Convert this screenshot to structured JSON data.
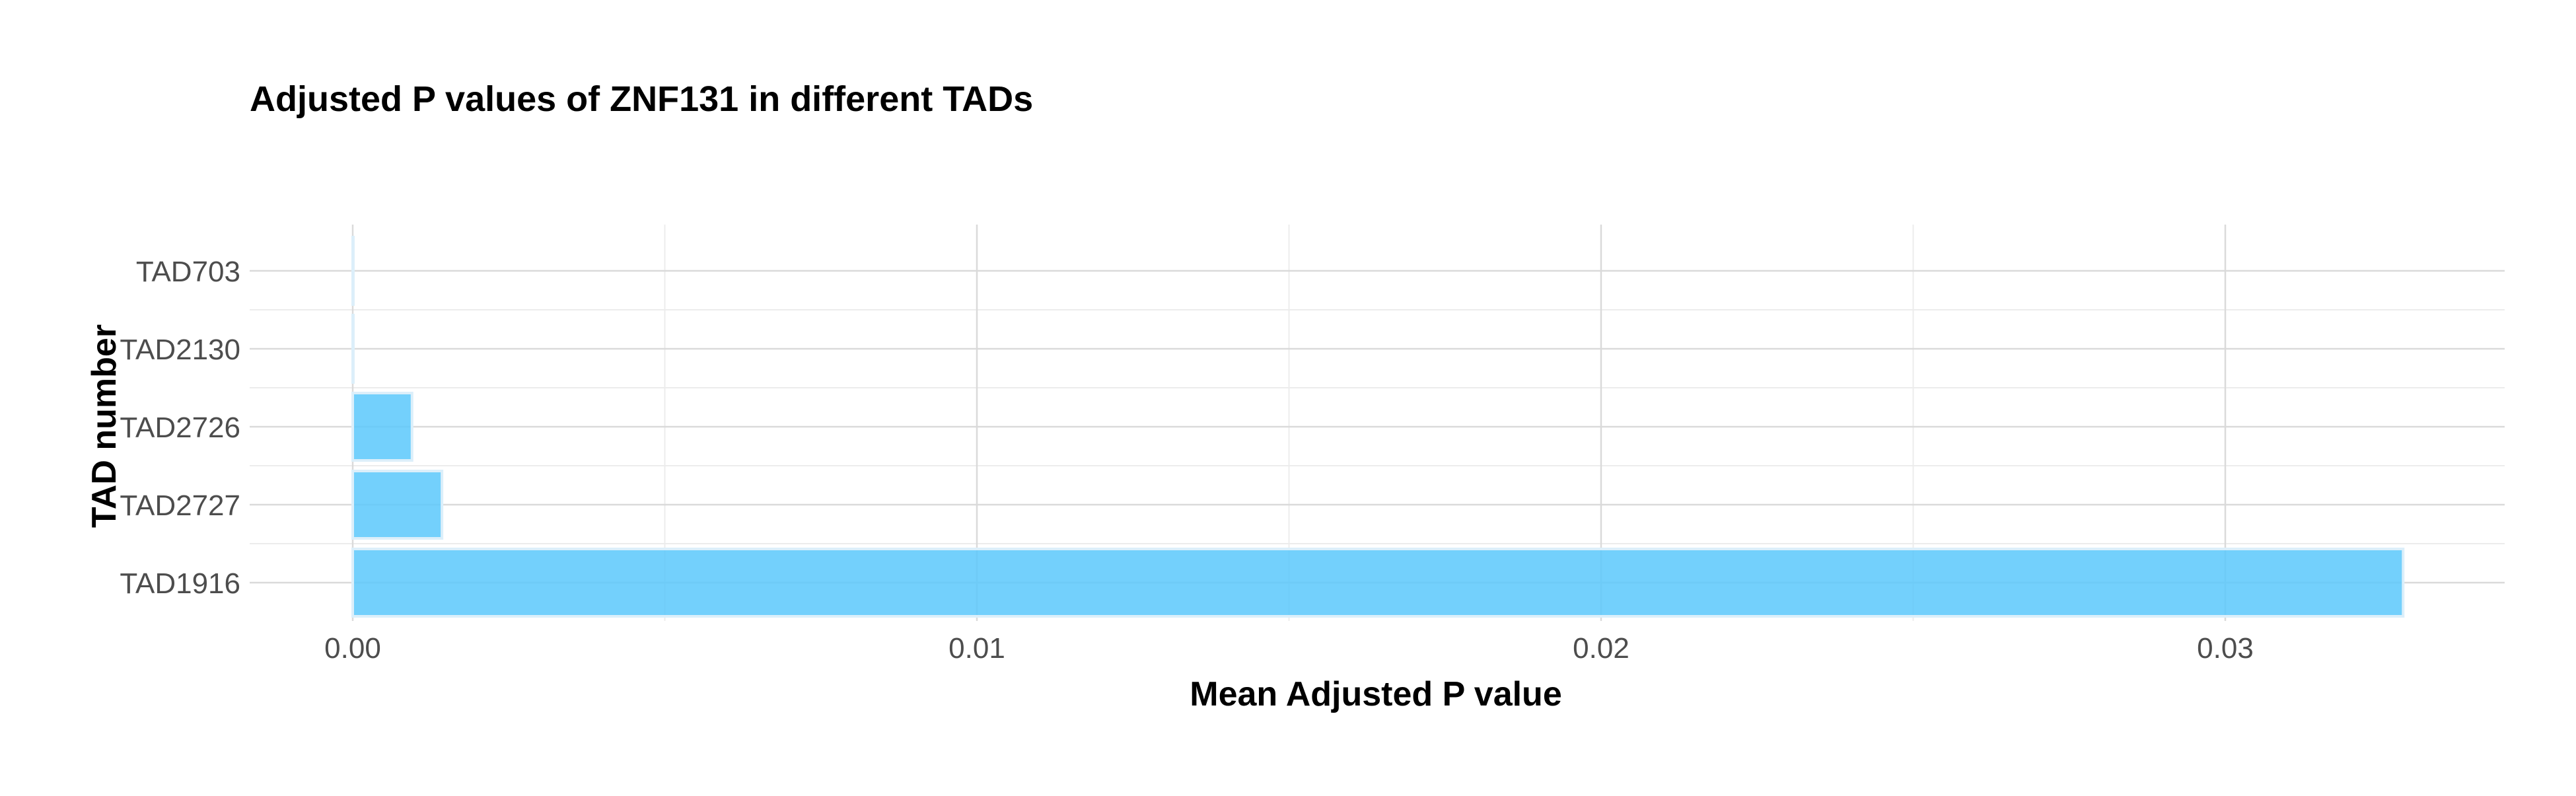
{
  "chart_data": {
    "type": "bar",
    "orientation": "horizontal",
    "title": "Adjusted P values of ZNF131 in different TADs",
    "xlabel": "Mean Adjusted P value",
    "ylabel": "TAD number",
    "categories": [
      "TAD703",
      "TAD2130",
      "TAD2726",
      "TAD2727",
      "TAD1916"
    ],
    "values": [
      1e-05,
      1e-05,
      0.00095,
      0.00143,
      0.03285
    ],
    "x_ticks": [
      0.0,
      0.01,
      0.02,
      0.03
    ],
    "x_tick_labels": [
      "0.00",
      "0.01",
      "0.02",
      "0.03"
    ],
    "xlim": [
      -0.00168,
      0.03286
    ],
    "grid": true,
    "bar_color": "#5BC8FB",
    "bar_edge_color": "#DCEFFA"
  }
}
